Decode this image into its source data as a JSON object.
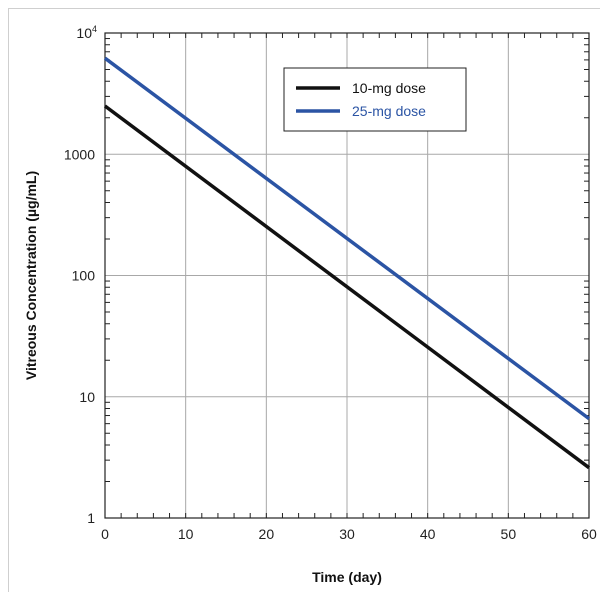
{
  "chart_data": {
    "type": "line",
    "xlabel": "Time (day)",
    "ylabel": "Vitreous Concentration (µg/mL)",
    "x_ticks": [
      "0",
      "10",
      "20",
      "30",
      "40",
      "50",
      "60"
    ],
    "y_ticks": [
      "1",
      "10",
      "100",
      "1000"
    ],
    "y_top_tick": {
      "base": "10",
      "exponent": "4"
    },
    "xlim": [
      0,
      60
    ],
    "ylim": [
      1,
      10000
    ],
    "y_scale": "log",
    "grid": true,
    "legend_position": "top-right",
    "series": [
      {
        "name": "10-mg dose",
        "color": "#111111",
        "x": [
          0,
          60
        ],
        "y": [
          2500,
          2.6
        ]
      },
      {
        "name": "25-mg dose",
        "color": "#2b54a4",
        "x": [
          0,
          60
        ],
        "y": [
          6200,
          6.6
        ]
      }
    ]
  }
}
